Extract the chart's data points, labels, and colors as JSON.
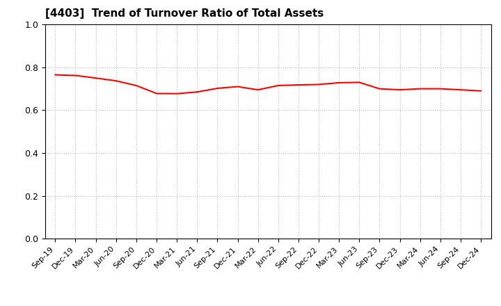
{
  "title": "[4403]  Trend of Turnover Ratio of Total Assets",
  "title_fontsize": 11,
  "line_color": "#ff0000",
  "line_width": 1.5,
  "ylim": [
    0.0,
    1.0
  ],
  "yticks": [
    0.0,
    0.2,
    0.4,
    0.6,
    0.8,
    1.0
  ],
  "xlabels": [
    "Sep-19",
    "Dec-19",
    "Mar-20",
    "Jun-20",
    "Sep-20",
    "Dec-20",
    "Mar-21",
    "Jun-21",
    "Sep-21",
    "Dec-21",
    "Mar-22",
    "Jun-22",
    "Sep-22",
    "Dec-22",
    "Mar-23",
    "Jun-23",
    "Sep-23",
    "Dec-23",
    "Mar-24",
    "Jun-24",
    "Sep-24",
    "Dec-24"
  ],
  "values": [
    0.765,
    0.762,
    0.75,
    0.737,
    0.715,
    0.678,
    0.677,
    0.685,
    0.702,
    0.71,
    0.695,
    0.715,
    0.718,
    0.72,
    0.728,
    0.73,
    0.7,
    0.695,
    0.7,
    0.7,
    0.695,
    0.69
  ],
  "grid_color": "#bbbbbb",
  "background_color": "#ffffff",
  "spine_color": "#000000",
  "xlabel_fontsize": 8,
  "ylabel_fontsize": 9
}
